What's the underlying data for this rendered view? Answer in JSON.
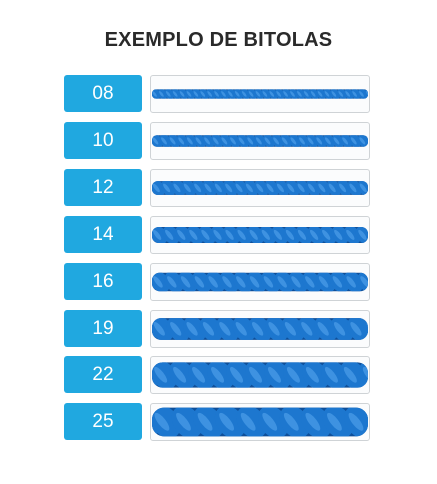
{
  "title": "EXEMPLO DE BITOLAS",
  "colors": {
    "badge": "#20a8e0",
    "rope": "#1d77cf",
    "rope_dark": "#0e4f9a",
    "rope_light": "#5aa9f0"
  },
  "gauges": [
    {
      "label": "08",
      "thickness": 8
    },
    {
      "label": "10",
      "thickness": 10
    },
    {
      "label": "12",
      "thickness": 12
    },
    {
      "label": "14",
      "thickness": 14
    },
    {
      "label": "16",
      "thickness": 16
    },
    {
      "label": "19",
      "thickness": 19
    },
    {
      "label": "22",
      "thickness": 22
    },
    {
      "label": "25",
      "thickness": 25
    }
  ]
}
